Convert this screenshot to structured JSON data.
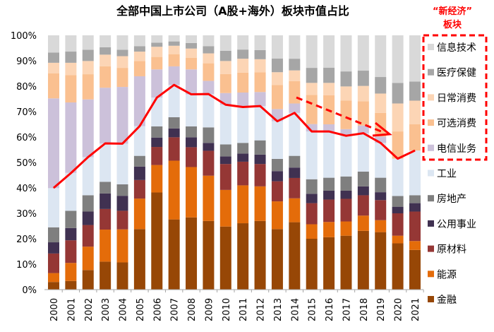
{
  "chart_data": {
    "type": "bar",
    "stacked": true,
    "title": "全部中国上市公司（A股+海外）板块市值占比",
    "categories": [
      "2000",
      "2001",
      "2002",
      "2003",
      "2004",
      "2005",
      "2006",
      "2007",
      "2008",
      "2009",
      "2010",
      "2011",
      "2012",
      "2013",
      "2014",
      "2015",
      "2016",
      "2017",
      "2018",
      "2019",
      "2020",
      "2021"
    ],
    "ylim": [
      0,
      100
    ],
    "yticks": [
      "0%",
      "10%",
      "20%",
      "30%",
      "40%",
      "50%",
      "60%",
      "70%",
      "80%",
      "90%",
      "100%"
    ],
    "grid": false,
    "legend_position": "right",
    "series": [
      {
        "name": "金融",
        "color": "#974706",
        "values": [
          3.0,
          3.4,
          7.7,
          11.0,
          10.7,
          23.8,
          38.2,
          27.6,
          28.4,
          27.0,
          24.8,
          26.1,
          27.0,
          23.8,
          26.5,
          20.0,
          20.6,
          21.2,
          23.1,
          22.6,
          18.2,
          15.6
        ]
      },
      {
        "name": "能源",
        "color": "#E46C0A",
        "values": [
          3.5,
          7.1,
          9.2,
          12.6,
          13.0,
          12.0,
          10.8,
          23.1,
          19.8,
          17.8,
          14.4,
          14.9,
          13.6,
          10.9,
          9.4,
          5.7,
          6.0,
          5.6,
          6.0,
          4.7,
          3.0,
          3.5
        ]
      },
      {
        "name": "原材料",
        "color": "#953735",
        "values": [
          7.7,
          8.9,
          8.5,
          8.1,
          7.3,
          7.3,
          7.1,
          9.2,
          7.8,
          9.8,
          10.2,
          9.3,
          8.8,
          7.9,
          8.0,
          8.3,
          8.8,
          8.9,
          8.0,
          7.9,
          8.8,
          11.6
        ]
      },
      {
        "name": "公用事业",
        "color": "#403151",
        "values": [
          4.4,
          4.8,
          5.3,
          6.1,
          5.9,
          5.3,
          3.7,
          3.5,
          3.9,
          3.1,
          3.0,
          3.2,
          3.7,
          4.0,
          4.1,
          3.7,
          3.5,
          3.2,
          3.5,
          3.1,
          2.6,
          3.3
        ]
      },
      {
        "name": "房地产",
        "color": "#7F7F7F",
        "values": [
          5.9,
          6.8,
          6.4,
          4.6,
          4.5,
          4.2,
          4.4,
          4.4,
          4.3,
          6.1,
          4.7,
          4.2,
          5.6,
          4.8,
          4.6,
          5.7,
          5.1,
          5.6,
          5.8,
          5.7,
          4.2,
          3.1
        ]
      },
      {
        "name": "工业",
        "color": "#DCE6F2",
        "values": [
          15.4,
          14.9,
          15.0,
          15.1,
          16.0,
          11.7,
          11.3,
          12.7,
          12.6,
          13.1,
          15.6,
          14.1,
          13.5,
          14.8,
          16.9,
          18.8,
          18.2,
          16.0,
          15.1,
          13.7,
          14.7,
          17.6
        ]
      },
      {
        "name": "电信业务",
        "color": "#CCC1DA",
        "values": [
          35.3,
          27.7,
          22.7,
          21.9,
          22.3,
          19.6,
          11.1,
          7.3,
          9.8,
          5.2,
          4.6,
          5.7,
          5.5,
          4.8,
          3.7,
          2.9,
          2.8,
          2.6,
          3.0,
          2.5,
          0,
          0
        ]
      },
      {
        "name": "可选消费",
        "color": "#FAC090",
        "values": [
          9.8,
          10.7,
          9.9,
          8.4,
          7.5,
          6.0,
          4.9,
          4.8,
          4.6,
          6.9,
          7.5,
          7.8,
          7.8,
          9.5,
          8.8,
          11.5,
          11.4,
          11.2,
          9.6,
          9.3,
          10.7,
          10.3
        ]
      },
      {
        "name": "日常消费",
        "color": "#FCD5B5",
        "values": [
          4.2,
          4.9,
          5.2,
          4.6,
          4.6,
          3.7,
          4.0,
          3.3,
          3.6,
          3.9,
          5.1,
          5.5,
          5.1,
          5.0,
          4.2,
          4.7,
          4.9,
          5.6,
          6.0,
          7.6,
          11.0,
          9.3
        ]
      },
      {
        "name": "医疗保健",
        "color": "#A6A6A6",
        "values": [
          4.0,
          4.4,
          4.4,
          2.9,
          2.5,
          2.1,
          1.6,
          1.7,
          2.2,
          2.8,
          4.0,
          3.6,
          3.6,
          5.4,
          4.6,
          5.9,
          6.0,
          5.9,
          6.0,
          6.5,
          8.1,
          7.5
        ]
      },
      {
        "name": "信息技术",
        "color": "#D9D9D9",
        "values": [
          6.8,
          6.4,
          5.7,
          4.7,
          5.7,
          4.3,
          2.9,
          2.4,
          3.0,
          4.3,
          6.1,
          5.6,
          5.8,
          9.1,
          9.2,
          12.8,
          12.7,
          14.2,
          13.9,
          16.4,
          18.7,
          18.2
        ]
      }
    ],
    "line": {
      "color": "#FF0000",
      "values": [
        40.0,
        45.8,
        52.1,
        57.5,
        57.4,
        64.3,
        75.5,
        80.5,
        76.8,
        76.9,
        72.7,
        71.8,
        72.2,
        66.2,
        69.5,
        62.2,
        62.2,
        60.5,
        61.5,
        57.7,
        51.5,
        54.7
      ]
    },
    "annotation": {
      "line1": "“新经济”",
      "line2": "板块",
      "color": "#FF0000"
    },
    "new_economy_group": [
      "信息技术",
      "医疗保健",
      "日常消费",
      "可选消费",
      "电信业务"
    ]
  }
}
